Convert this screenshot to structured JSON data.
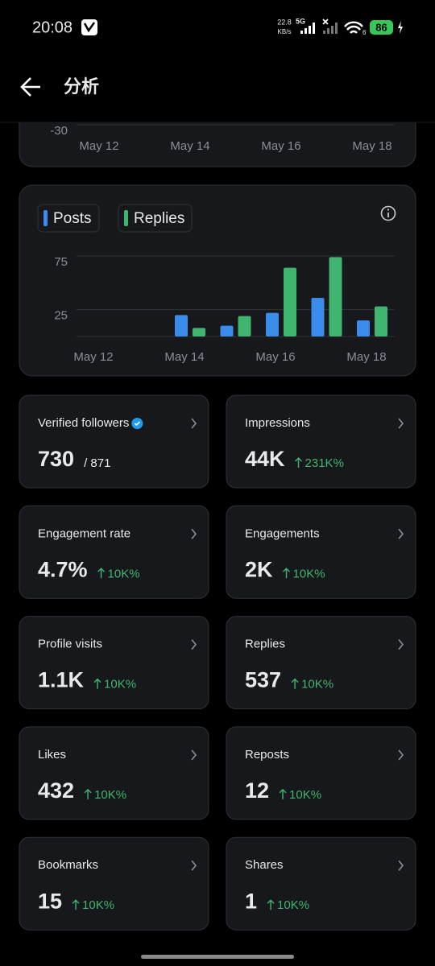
{
  "status_bar": {
    "time": "20:08",
    "speed": "22.8",
    "speed_unit": "KB/s",
    "network": "5G",
    "wifi_sub": "6",
    "battery": "86"
  },
  "header": {
    "title": "分析"
  },
  "chart_data": [
    {
      "type": "bar",
      "categories": [
        "May 12",
        null,
        "May 14",
        null,
        "May 16",
        null,
        "May 18"
      ],
      "yticks": [
        -30
      ],
      "grid": true
    },
    {
      "type": "bar",
      "categories": [
        "May 12",
        null,
        "May 14",
        null,
        "May 16",
        null,
        "May 18"
      ],
      "series": [
        {
          "name": "Posts",
          "color": "#3b8beb",
          "values": [
            null,
            null,
            20,
            10,
            22,
            36,
            15
          ]
        },
        {
          "name": "Replies",
          "color": "#3fb56f",
          "values": [
            null,
            null,
            8,
            19,
            64,
            74,
            28
          ]
        }
      ],
      "ylim": [
        0,
        75
      ],
      "yticks": [
        25,
        75
      ],
      "grid": true
    }
  ],
  "metrics": [
    {
      "label": "Verified followers",
      "value": "730",
      "total": "/ 871"
    },
    {
      "label": "Impressions",
      "value": "44K",
      "change": "231K%"
    },
    {
      "label": "Engagement rate",
      "value": "4.7%",
      "change": "10K%"
    },
    {
      "label": "Engagements",
      "value": "2K",
      "change": "10K%"
    },
    {
      "label": "Profile visits",
      "value": "1.1K",
      "change": "10K%"
    },
    {
      "label": "Replies",
      "value": "537",
      "change": "10K%"
    },
    {
      "label": "Likes",
      "value": "432",
      "change": "10K%"
    },
    {
      "label": "Reposts",
      "value": "12",
      "change": "10K%"
    },
    {
      "label": "Bookmarks",
      "value": "15",
      "change": "10K%"
    },
    {
      "label": "Shares",
      "value": "1",
      "change": "10K%"
    }
  ]
}
